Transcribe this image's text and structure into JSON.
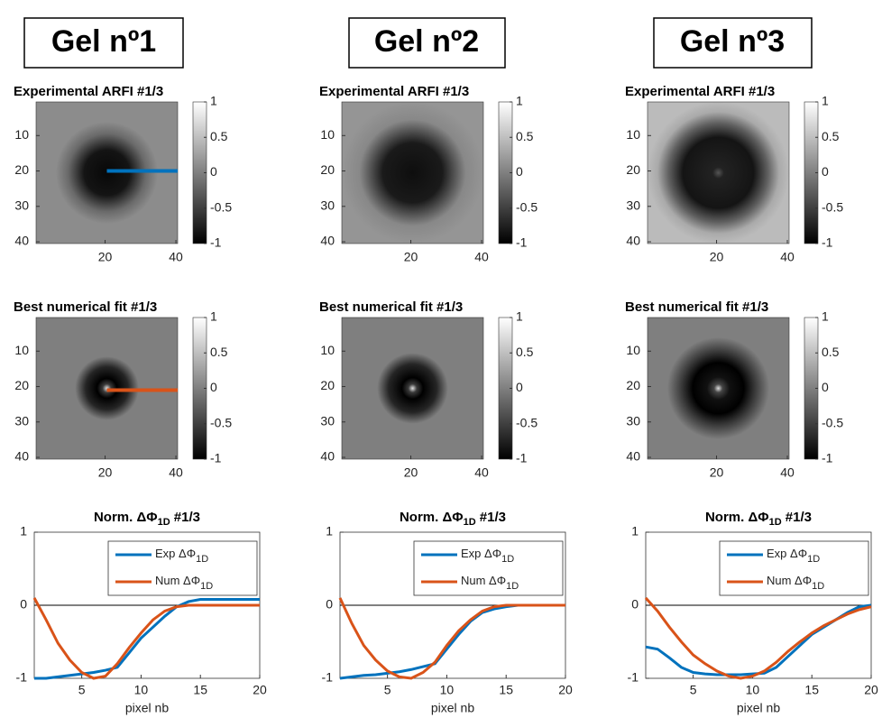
{
  "headers": [
    "Gel nº1",
    "Gel nº2",
    "Gel nº3"
  ],
  "chart_data": [
    {
      "type": "heatmap",
      "title": "Experimental ARFI #1/3",
      "xlim": [
        0.5,
        40.5
      ],
      "ylim": [
        0.5,
        40.5
      ],
      "xticks": [
        20,
        40
      ],
      "yticks": [
        10,
        20,
        30,
        40
      ],
      "clim": [
        -1,
        1
      ],
      "cticks": [
        -1,
        -0.5,
        0,
        0.5,
        1
      ]
    },
    {
      "type": "heatmap",
      "title": "Best numerical fit #1/3",
      "xlim": [
        0.5,
        40.5
      ],
      "ylim": [
        0.5,
        40.5
      ],
      "xticks": [
        20,
        40
      ],
      "yticks": [
        10,
        20,
        30,
        40
      ],
      "clim": [
        -1,
        1
      ],
      "cticks": [
        -1,
        -0.5,
        0,
        0.5,
        1
      ]
    },
    {
      "type": "line",
      "title": "Norm. ΔΦ",
      "title_sub": "1D",
      "title_suffix": " #1/3",
      "x_label": "pixel nb",
      "x": [
        1,
        2,
        3,
        4,
        5,
        6,
        7,
        8,
        9,
        10,
        11,
        12,
        13,
        14,
        15,
        16,
        17,
        18,
        19,
        20
      ],
      "xlim": [
        1,
        20
      ],
      "xticks": [
        5,
        10,
        15,
        20
      ],
      "ylim": [
        -1,
        1
      ],
      "yticks": [
        -1,
        0,
        1
      ],
      "zero_line": true,
      "series": [
        {
          "name": "Exp ΔΦ",
          "name_sub": "1D",
          "color": "#0072bd",
          "values": [
            -1,
            -1,
            -0.98,
            -0.96,
            -0.94,
            -0.92,
            -0.89,
            -0.85,
            -0.65,
            -0.45,
            -0.3,
            -0.15,
            -0.02,
            0.05,
            0.08,
            0.08,
            0.08,
            0.08,
            0.08,
            0.08
          ]
        },
        {
          "name": "Num ΔΦ",
          "name_sub": "1D",
          "color": "#d95319",
          "values": [
            0.1,
            -0.2,
            -0.52,
            -0.75,
            -0.92,
            -1,
            -0.97,
            -0.8,
            -0.58,
            -0.38,
            -0.2,
            -0.08,
            -0.02,
            0,
            0,
            0,
            0,
            0,
            0,
            0
          ]
        }
      ]
    },
    {
      "type": "heatmap",
      "title": "Experimental ARFI #1/3",
      "xlim": [
        0.5,
        40.5
      ],
      "ylim": [
        0.5,
        40.5
      ],
      "xticks": [
        20,
        40
      ],
      "yticks": [
        10,
        20,
        30,
        40
      ],
      "clim": [
        -1,
        1
      ],
      "cticks": [
        -1,
        -0.5,
        0,
        0.5,
        1
      ]
    },
    {
      "type": "heatmap",
      "title": "Best numerical fit #1/3",
      "xlim": [
        0.5,
        40.5
      ],
      "ylim": [
        0.5,
        40.5
      ],
      "xticks": [
        20,
        40
      ],
      "yticks": [
        10,
        20,
        30,
        40
      ],
      "clim": [
        -1,
        1
      ],
      "cticks": [
        -1,
        -0.5,
        0,
        0.5,
        1
      ]
    },
    {
      "type": "line",
      "title": "Norm. ΔΦ",
      "title_sub": "1D",
      "title_suffix": " #1/3",
      "x_label": "pixel nb",
      "x": [
        1,
        2,
        3,
        4,
        5,
        6,
        7,
        8,
        9,
        10,
        11,
        12,
        13,
        14,
        15,
        16,
        17,
        18,
        19,
        20
      ],
      "xlim": [
        1,
        20
      ],
      "xticks": [
        5,
        10,
        15,
        20
      ],
      "ylim": [
        -1,
        1
      ],
      "yticks": [
        -1,
        0,
        1
      ],
      "zero_line": true,
      "series": [
        {
          "name": "Exp ΔΦ",
          "name_sub": "1D",
          "color": "#0072bd",
          "values": [
            -1,
            -0.98,
            -0.96,
            -0.95,
            -0.93,
            -0.91,
            -0.88,
            -0.84,
            -0.8,
            -0.6,
            -0.4,
            -0.22,
            -0.1,
            -0.05,
            -0.02,
            0,
            0,
            0,
            0,
            0
          ]
        },
        {
          "name": "Num ΔΦ",
          "name_sub": "1D",
          "color": "#d95319",
          "values": [
            0.1,
            -0.25,
            -0.55,
            -0.75,
            -0.9,
            -0.98,
            -1,
            -0.92,
            -0.78,
            -0.55,
            -0.35,
            -0.2,
            -0.08,
            -0.02,
            0,
            0,
            0,
            0,
            0,
            0
          ]
        }
      ]
    },
    {
      "type": "heatmap",
      "title": "Experimental ARFI #1/3",
      "xlim": [
        0.5,
        40.5
      ],
      "ylim": [
        0.5,
        40.5
      ],
      "xticks": [
        20,
        40
      ],
      "yticks": [
        10,
        20,
        30,
        40
      ],
      "clim": [
        -1,
        1
      ],
      "cticks": [
        -1,
        -0.5,
        0,
        0.5,
        1
      ]
    },
    {
      "type": "heatmap",
      "title": "Best numerical fit #1/3",
      "xlim": [
        0.5,
        40.5
      ],
      "ylim": [
        0.5,
        40.5
      ],
      "xticks": [
        20,
        40
      ],
      "yticks": [
        10,
        20,
        30,
        40
      ],
      "clim": [
        -1,
        1
      ],
      "cticks": [
        -1,
        -0.5,
        0,
        0.5,
        1
      ]
    },
    {
      "type": "line",
      "title": "Norm. ΔΦ",
      "title_sub": "1D",
      "title_suffix": " #1/3",
      "x_label": "pixel nb",
      "x": [
        1,
        2,
        3,
        4,
        5,
        6,
        7,
        8,
        9,
        10,
        11,
        12,
        13,
        14,
        15,
        16,
        17,
        18,
        19,
        20
      ],
      "xlim": [
        1,
        20
      ],
      "xticks": [
        5,
        10,
        15,
        20
      ],
      "ylim": [
        -1,
        1
      ],
      "yticks": [
        -1,
        0,
        1
      ],
      "zero_line": true,
      "series": [
        {
          "name": "Exp ΔΦ",
          "name_sub": "1D",
          "color": "#0072bd",
          "values": [
            -0.57,
            -0.6,
            -0.72,
            -0.85,
            -0.92,
            -0.94,
            -0.95,
            -0.95,
            -0.95,
            -0.94,
            -0.93,
            -0.85,
            -0.7,
            -0.55,
            -0.4,
            -0.3,
            -0.2,
            -0.1,
            -0.02,
            0
          ]
        },
        {
          "name": "Num ΔΦ",
          "name_sub": "1D",
          "color": "#d95319",
          "values": [
            0.1,
            -0.08,
            -0.3,
            -0.5,
            -0.68,
            -0.8,
            -0.9,
            -0.97,
            -1,
            -0.97,
            -0.9,
            -0.78,
            -0.63,
            -0.5,
            -0.38,
            -0.28,
            -0.2,
            -0.12,
            -0.06,
            -0.02
          ]
        }
      ]
    }
  ]
}
